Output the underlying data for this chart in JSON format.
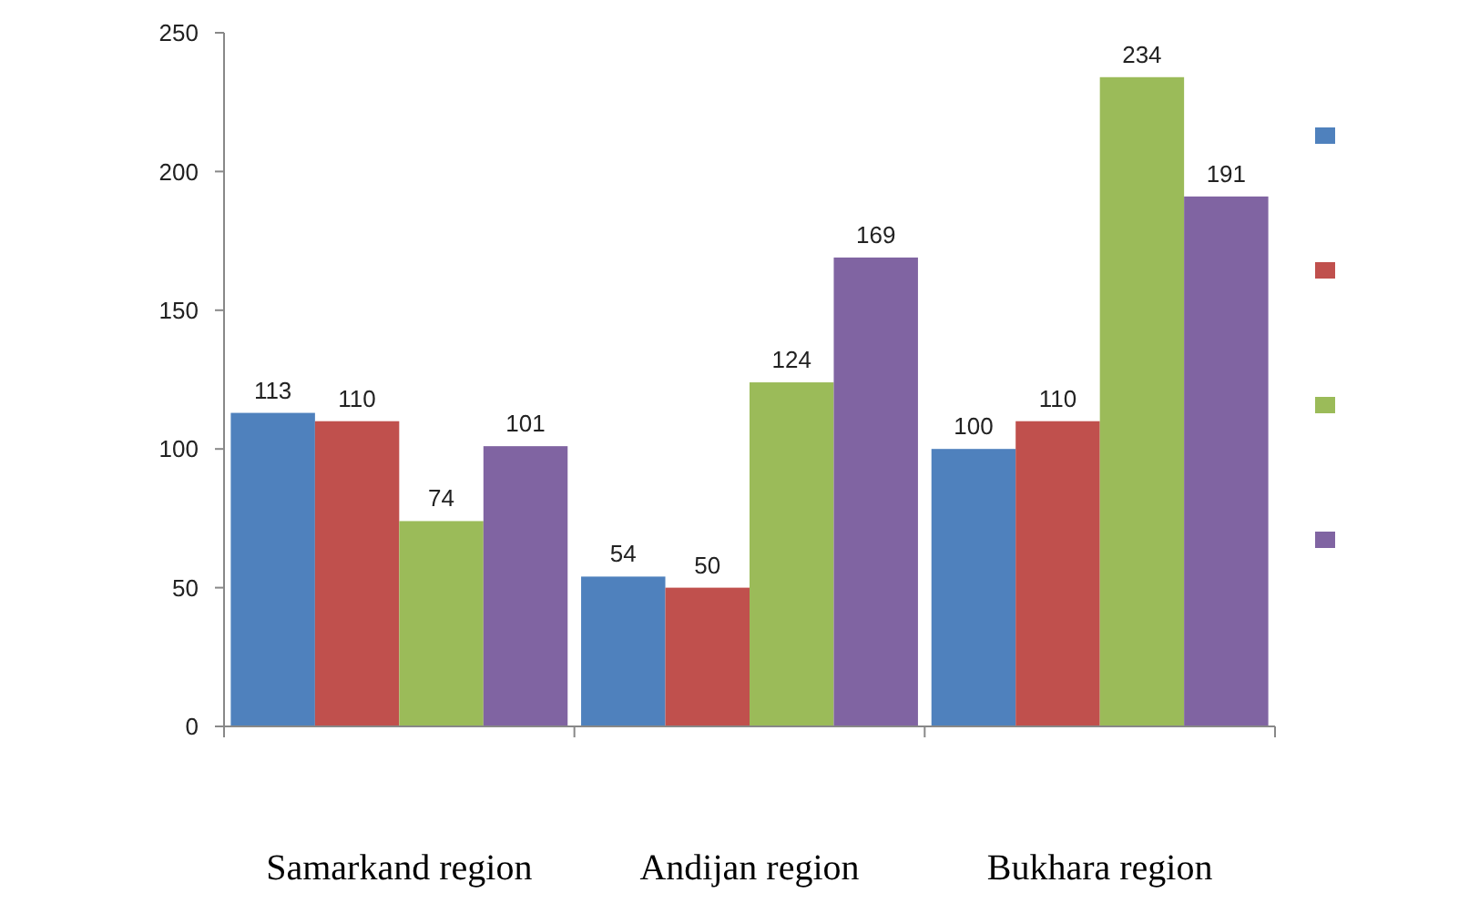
{
  "chart_data": {
    "type": "bar",
    "categories": [
      "Samarkand region",
      "Andijan region",
      "Bukhara region"
    ],
    "series": [
      {
        "color": "#4f81bd",
        "values": [
          113,
          54,
          100
        ]
      },
      {
        "color": "#c0504d",
        "values": [
          110,
          50,
          110
        ]
      },
      {
        "color": "#9bbb59",
        "values": [
          74,
          124,
          234
        ]
      },
      {
        "color": "#8064a2",
        "values": [
          101,
          169,
          191
        ]
      }
    ],
    "ylim": [
      0,
      250
    ],
    "yticks": [
      0,
      50,
      100,
      150,
      200,
      250
    ],
    "data_labels": true,
    "grid": false
  }
}
